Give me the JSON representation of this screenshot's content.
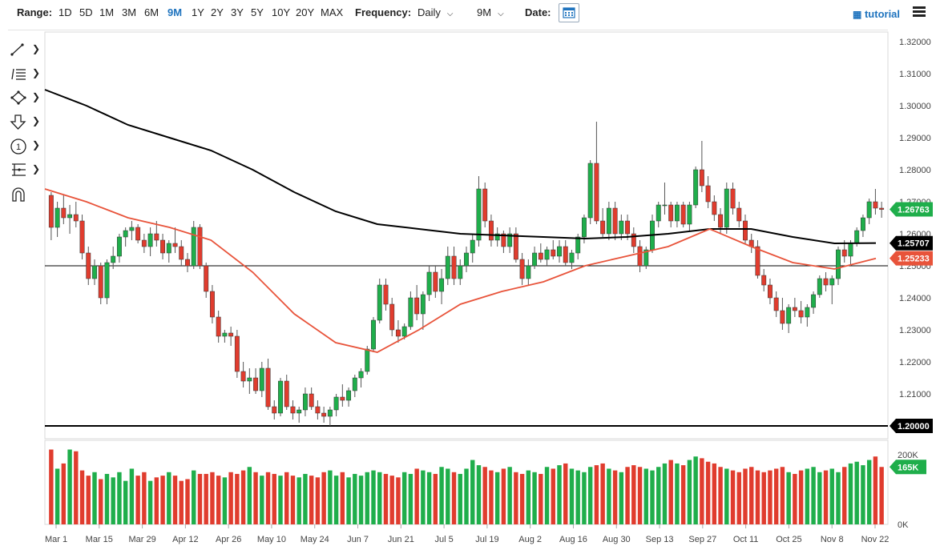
{
  "toolbar": {
    "range_label": "Range:",
    "ranges": [
      "1D",
      "5D",
      "1M",
      "3M",
      "6M",
      "9M",
      "1Y",
      "2Y",
      "3Y",
      "5Y",
      "10Y",
      "20Y",
      "MAX"
    ],
    "active_range": "9M",
    "frequency_label": "Frequency:",
    "frequency_value": "Daily",
    "period_value": "9M",
    "date_label": "Date:",
    "calendar_icon": "calendar-icon",
    "tutorial_label": "tutorial",
    "tutorial_icon": "film-icon",
    "menu_icon": "hamburger-menu-icon"
  },
  "drawing_tools": [
    {
      "name": "line-tool-icon"
    },
    {
      "name": "fibonacci-tool-icon"
    },
    {
      "name": "shape-tool-icon"
    },
    {
      "name": "arrow-marker-icon"
    },
    {
      "name": "annotation-icon"
    },
    {
      "name": "pattern-tool-icon"
    },
    {
      "name": "magnet-icon"
    }
  ],
  "chart_data": {
    "type": "candlestick",
    "x_tick_labels": [
      "Mar 1",
      "Mar 15",
      "Mar 29",
      "Apr 12",
      "Apr 26",
      "May 10",
      "May 24",
      "Jun 7",
      "Jun 21",
      "Jul 5",
      "Jul 19",
      "Aug 2",
      "Aug 16",
      "Aug 30",
      "Sep 13",
      "Sep 27",
      "Oct 11",
      "Oct 25",
      "Nov 8",
      "Nov 22"
    ],
    "y_tick_labels": [
      "1.32000",
      "1.31000",
      "1.30000",
      "1.29000",
      "1.28000",
      "1.27000",
      "1.26000",
      "1.25000",
      "1.24000",
      "1.23000",
      "1.22000",
      "1.21000"
    ],
    "ylim": [
      1.196,
      1.323
    ],
    "price_labels": [
      {
        "value": 1.26763,
        "text": "1.26763",
        "color": "#1fae4b"
      },
      {
        "value": 1.25707,
        "text": "1.25707",
        "color": "#000000"
      },
      {
        "value": 1.25233,
        "text": "1.25233",
        "color": "#e8533a"
      },
      {
        "value": 1.2,
        "text": "1.20000",
        "color": "#000000"
      }
    ],
    "horizontal_lines": [
      1.25,
      1.2
    ],
    "ma_long_color": "#000000",
    "ma_short_color": "#e8533a",
    "up_color": "#1fae4b",
    "down_color": "#e03c2e",
    "ma_long": [
      {
        "x": 0.0,
        "y": 1.305
      },
      {
        "x": 0.05,
        "y": 1.3
      },
      {
        "x": 0.1,
        "y": 1.294
      },
      {
        "x": 0.15,
        "y": 1.29
      },
      {
        "x": 0.2,
        "y": 1.286
      },
      {
        "x": 0.25,
        "y": 1.28
      },
      {
        "x": 0.3,
        "y": 1.273
      },
      {
        "x": 0.35,
        "y": 1.267
      },
      {
        "x": 0.4,
        "y": 1.263
      },
      {
        "x": 0.45,
        "y": 1.2615
      },
      {
        "x": 0.5,
        "y": 1.26
      },
      {
        "x": 0.55,
        "y": 1.2595
      },
      {
        "x": 0.6,
        "y": 1.259
      },
      {
        "x": 0.65,
        "y": 1.2585
      },
      {
        "x": 0.7,
        "y": 1.259
      },
      {
        "x": 0.75,
        "y": 1.26
      },
      {
        "x": 0.8,
        "y": 1.2615
      },
      {
        "x": 0.85,
        "y": 1.2615
      },
      {
        "x": 0.9,
        "y": 1.259
      },
      {
        "x": 0.95,
        "y": 1.257
      },
      {
        "x": 1.0,
        "y": 1.2571
      }
    ],
    "ma_short": [
      {
        "x": 0.0,
        "y": 1.274
      },
      {
        "x": 0.05,
        "y": 1.27
      },
      {
        "x": 0.1,
        "y": 1.265
      },
      {
        "x": 0.15,
        "y": 1.262
      },
      {
        "x": 0.2,
        "y": 1.258
      },
      {
        "x": 0.25,
        "y": 1.248
      },
      {
        "x": 0.3,
        "y": 1.235
      },
      {
        "x": 0.35,
        "y": 1.226
      },
      {
        "x": 0.4,
        "y": 1.223
      },
      {
        "x": 0.45,
        "y": 1.23
      },
      {
        "x": 0.5,
        "y": 1.238
      },
      {
        "x": 0.55,
        "y": 1.242
      },
      {
        "x": 0.6,
        "y": 1.245
      },
      {
        "x": 0.65,
        "y": 1.25
      },
      {
        "x": 0.7,
        "y": 1.253
      },
      {
        "x": 0.75,
        "y": 1.256
      },
      {
        "x": 0.8,
        "y": 1.2615
      },
      {
        "x": 0.85,
        "y": 1.256
      },
      {
        "x": 0.9,
        "y": 1.251
      },
      {
        "x": 0.95,
        "y": 1.249
      },
      {
        "x": 1.0,
        "y": 1.2523
      }
    ],
    "candles": [
      [
        1.272,
        1.273,
        1.258,
        1.262
      ],
      [
        1.262,
        1.27,
        1.259,
        1.268
      ],
      [
        1.268,
        1.272,
        1.263,
        1.265
      ],
      [
        1.265,
        1.269,
        1.26,
        1.266
      ],
      [
        1.266,
        1.27,
        1.262,
        1.264
      ],
      [
        1.264,
        1.266,
        1.252,
        1.254
      ],
      [
        1.254,
        1.256,
        1.244,
        1.246
      ],
      [
        1.246,
        1.252,
        1.244,
        1.25
      ],
      [
        1.25,
        1.251,
        1.238,
        1.24
      ],
      [
        1.24,
        1.252,
        1.238,
        1.251
      ],
      [
        1.251,
        1.256,
        1.249,
        1.253
      ],
      [
        1.253,
        1.26,
        1.251,
        1.259
      ],
      [
        1.259,
        1.262,
        1.256,
        1.261
      ],
      [
        1.261,
        1.264,
        1.258,
        1.262
      ],
      [
        1.262,
        1.263,
        1.257,
        1.258
      ],
      [
        1.258,
        1.26,
        1.254,
        1.256
      ],
      [
        1.256,
        1.262,
        1.253,
        1.26
      ],
      [
        1.26,
        1.264,
        1.256,
        1.258
      ],
      [
        1.258,
        1.26,
        1.252,
        1.254
      ],
      [
        1.254,
        1.258,
        1.251,
        1.257
      ],
      [
        1.257,
        1.262,
        1.254,
        1.256
      ],
      [
        1.256,
        1.258,
        1.25,
        1.252
      ],
      [
        1.252,
        1.254,
        1.248,
        1.25
      ],
      [
        1.25,
        1.264,
        1.249,
        1.262
      ],
      [
        1.262,
        1.263,
        1.249,
        1.25
      ],
      [
        1.25,
        1.251,
        1.24,
        1.242
      ],
      [
        1.242,
        1.244,
        1.232,
        1.234
      ],
      [
        1.234,
        1.236,
        1.226,
        1.228
      ],
      [
        1.228,
        1.23,
        1.226,
        1.229
      ],
      [
        1.229,
        1.231,
        1.225,
        1.228
      ],
      [
        1.228,
        1.23,
        1.215,
        1.217
      ],
      [
        1.217,
        1.22,
        1.212,
        1.214
      ],
      [
        1.214,
        1.218,
        1.21,
        1.215
      ],
      [
        1.215,
        1.218,
        1.21,
        1.211
      ],
      [
        1.211,
        1.22,
        1.209,
        1.218
      ],
      [
        1.218,
        1.221,
        1.205,
        1.206
      ],
      [
        1.206,
        1.208,
        1.202,
        1.204
      ],
      [
        1.204,
        1.215,
        1.203,
        1.214
      ],
      [
        1.214,
        1.216,
        1.205,
        1.206
      ],
      [
        1.206,
        1.208,
        1.202,
        1.204
      ],
      [
        1.204,
        1.206,
        1.201,
        1.205
      ],
      [
        1.205,
        1.212,
        1.203,
        1.21
      ],
      [
        1.21,
        1.212,
        1.205,
        1.206
      ],
      [
        1.206,
        1.208,
        1.202,
        1.204
      ],
      [
        1.204,
        1.206,
        1.201,
        1.203
      ],
      [
        1.203,
        1.206,
        1.2,
        1.205
      ],
      [
        1.205,
        1.21,
        1.203,
        1.209
      ],
      [
        1.209,
        1.213,
        1.206,
        1.208
      ],
      [
        1.208,
        1.212,
        1.206,
        1.211
      ],
      [
        1.211,
        1.216,
        1.209,
        1.215
      ],
      [
        1.215,
        1.218,
        1.212,
        1.217
      ],
      [
        1.217,
        1.225,
        1.216,
        1.224
      ],
      [
        1.224,
        1.234,
        1.223,
        1.233
      ],
      [
        1.233,
        1.246,
        1.232,
        1.244
      ],
      [
        1.244,
        1.246,
        1.236,
        1.238
      ],
      [
        1.238,
        1.24,
        1.228,
        1.23
      ],
      [
        1.23,
        1.233,
        1.226,
        1.228
      ],
      [
        1.228,
        1.232,
        1.227,
        1.231
      ],
      [
        1.231,
        1.242,
        1.23,
        1.24
      ],
      [
        1.24,
        1.244,
        1.233,
        1.235
      ],
      [
        1.235,
        1.242,
        1.23,
        1.241
      ],
      [
        1.241,
        1.25,
        1.239,
        1.248
      ],
      [
        1.248,
        1.25,
        1.24,
        1.242
      ],
      [
        1.242,
        1.249,
        1.238,
        1.246
      ],
      [
        1.246,
        1.256,
        1.244,
        1.253
      ],
      [
        1.253,
        1.256,
        1.244,
        1.246
      ],
      [
        1.246,
        1.252,
        1.244,
        1.25
      ],
      [
        1.25,
        1.256,
        1.248,
        1.254
      ],
      [
        1.254,
        1.26,
        1.251,
        1.258
      ],
      [
        1.258,
        1.278,
        1.256,
        1.274
      ],
      [
        1.274,
        1.276,
        1.262,
        1.264
      ],
      [
        1.264,
        1.266,
        1.256,
        1.258
      ],
      [
        1.258,
        1.262,
        1.256,
        1.26
      ],
      [
        1.26,
        1.261,
        1.254,
        1.256
      ],
      [
        1.256,
        1.262,
        1.254,
        1.26
      ],
      [
        1.26,
        1.262,
        1.251,
        1.252
      ],
      [
        1.252,
        1.254,
        1.244,
        1.246
      ],
      [
        1.246,
        1.252,
        1.244,
        1.25
      ],
      [
        1.25,
        1.256,
        1.249,
        1.254
      ],
      [
        1.254,
        1.257,
        1.251,
        1.252
      ],
      [
        1.252,
        1.256,
        1.25,
        1.255
      ],
      [
        1.255,
        1.258,
        1.252,
        1.253
      ],
      [
        1.253,
        1.258,
        1.251,
        1.256
      ],
      [
        1.256,
        1.258,
        1.25,
        1.251
      ],
      [
        1.251,
        1.255,
        1.249,
        1.254
      ],
      [
        1.254,
        1.26,
        1.252,
        1.259
      ],
      [
        1.259,
        1.266,
        1.257,
        1.265
      ],
      [
        1.265,
        1.283,
        1.263,
        1.282
      ],
      [
        1.282,
        1.295,
        1.263,
        1.264
      ],
      [
        1.264,
        1.268,
        1.259,
        1.26
      ],
      [
        1.26,
        1.27,
        1.258,
        1.268
      ],
      [
        1.268,
        1.27,
        1.258,
        1.26
      ],
      [
        1.26,
        1.266,
        1.258,
        1.264
      ],
      [
        1.264,
        1.266,
        1.258,
        1.26
      ],
      [
        1.26,
        1.262,
        1.254,
        1.256
      ],
      [
        1.256,
        1.258,
        1.248,
        1.25
      ],
      [
        1.25,
        1.256,
        1.249,
        1.255
      ],
      [
        1.255,
        1.266,
        1.254,
        1.264
      ],
      [
        1.264,
        1.27,
        1.262,
        1.269
      ],
      [
        1.269,
        1.276,
        1.266,
        1.269
      ],
      [
        1.269,
        1.27,
        1.262,
        1.264
      ],
      [
        1.264,
        1.27,
        1.262,
        1.269
      ],
      [
        1.269,
        1.27,
        1.262,
        1.263
      ],
      [
        1.263,
        1.27,
        1.261,
        1.269
      ],
      [
        1.269,
        1.281,
        1.268,
        1.28
      ],
      [
        1.28,
        1.289,
        1.273,
        1.275
      ],
      [
        1.275,
        1.278,
        1.268,
        1.27
      ],
      [
        1.27,
        1.272,
        1.264,
        1.266
      ],
      [
        1.266,
        1.268,
        1.26,
        1.262
      ],
      [
        1.262,
        1.276,
        1.26,
        1.274
      ],
      [
        1.274,
        1.276,
        1.266,
        1.268
      ],
      [
        1.268,
        1.27,
        1.262,
        1.264
      ],
      [
        1.264,
        1.266,
        1.257,
        1.258
      ],
      [
        1.258,
        1.26,
        1.254,
        1.256
      ],
      [
        1.256,
        1.258,
        1.246,
        1.247
      ],
      [
        1.247,
        1.249,
        1.242,
        1.244
      ],
      [
        1.244,
        1.246,
        1.238,
        1.24
      ],
      [
        1.24,
        1.242,
        1.234,
        1.236
      ],
      [
        1.236,
        1.24,
        1.23,
        1.232
      ],
      [
        1.232,
        1.238,
        1.229,
        1.237
      ],
      [
        1.237,
        1.24,
        1.234,
        1.236
      ],
      [
        1.236,
        1.239,
        1.232,
        1.234
      ],
      [
        1.234,
        1.238,
        1.231,
        1.237
      ],
      [
        1.237,
        1.242,
        1.235,
        1.241
      ],
      [
        1.241,
        1.247,
        1.24,
        1.246
      ],
      [
        1.246,
        1.248,
        1.242,
        1.244
      ],
      [
        1.244,
        1.247,
        1.238,
        1.246
      ],
      [
        1.246,
        1.256,
        1.244,
        1.255
      ],
      [
        1.255,
        1.258,
        1.251,
        1.253
      ],
      [
        1.253,
        1.258,
        1.25,
        1.257
      ],
      [
        1.257,
        1.262,
        1.256,
        1.261
      ],
      [
        1.261,
        1.266,
        1.259,
        1.265
      ],
      [
        1.265,
        1.271,
        1.263,
        1.27
      ],
      [
        1.27,
        1.274,
        1.266,
        1.268
      ],
      [
        1.268,
        1.27,
        1.265,
        1.2676
      ]
    ],
    "volume_ticks": [
      "200K",
      "0K"
    ],
    "volume_max": 230000,
    "volume_label": "165K",
    "volumes": [
      215000,
      160000,
      175000,
      215000,
      210000,
      155000,
      140000,
      150000,
      130000,
      145000,
      135000,
      150000,
      125000,
      160000,
      140000,
      150000,
      125000,
      135000,
      140000,
      150000,
      140000,
      125000,
      130000,
      155000,
      145000,
      145000,
      150000,
      140000,
      135000,
      150000,
      145000,
      155000,
      165000,
      150000,
      140000,
      150000,
      145000,
      140000,
      150000,
      140000,
      135000,
      145000,
      140000,
      135000,
      150000,
      155000,
      140000,
      150000,
      135000,
      145000,
      140000,
      150000,
      155000,
      150000,
      145000,
      140000,
      135000,
      150000,
      145000,
      160000,
      155000,
      150000,
      145000,
      165000,
      160000,
      150000,
      145000,
      160000,
      185000,
      170000,
      165000,
      155000,
      150000,
      160000,
      165000,
      150000,
      145000,
      155000,
      150000,
      145000,
      165000,
      160000,
      170000,
      175000,
      160000,
      155000,
      150000,
      165000,
      170000,
      175000,
      160000,
      155000,
      150000,
      165000,
      170000,
      165000,
      160000,
      155000,
      165000,
      175000,
      185000,
      175000,
      170000,
      185000,
      195000,
      190000,
      180000,
      175000,
      165000,
      160000,
      155000,
      150000,
      160000,
      165000,
      155000,
      150000,
      155000,
      160000,
      165000,
      150000,
      145000,
      155000,
      160000,
      165000,
      150000,
      155000,
      160000,
      150000,
      165000,
      175000,
      180000,
      170000,
      185000,
      195000,
      165000
    ]
  }
}
